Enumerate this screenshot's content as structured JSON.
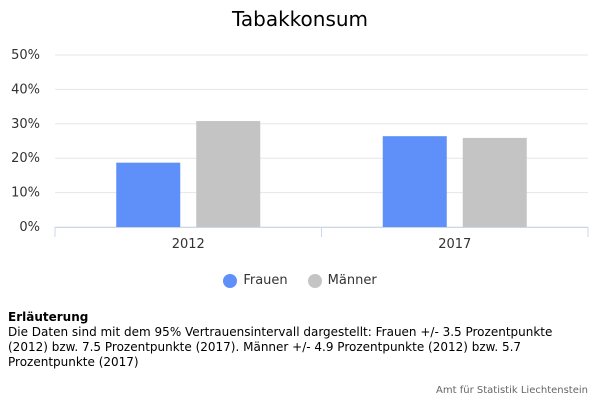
{
  "chart_data": {
    "type": "bar",
    "title": "Tabakkonsum",
    "categories": [
      "2012",
      "2017"
    ],
    "series": [
      {
        "name": "Frauen",
        "values": [
          18.7,
          26.4
        ],
        "color": "#5f8ff8"
      },
      {
        "name": "Männer",
        "values": [
          30.8,
          25.9
        ],
        "color": "#c4c4c4"
      }
    ],
    "ylim": [
      0,
      50
    ],
    "yticks": [
      "0%",
      "10%",
      "20%",
      "30%",
      "40%",
      "50%"
    ],
    "grid": true,
    "legend_position": "bottom"
  },
  "note": {
    "title": "Erläuterung",
    "text": "Die Daten sind mit dem 95% Vertrauensintervall dargestellt: Frauen +/- 3.5 Prozentpunkte (2012) bzw. 7.5 Prozentpunkte (2017). Männer +/- 4.9 Prozentpunkte (2012) bzw. 5.7 Prozentpunkte (2017)"
  },
  "credits": "Amt für Statistik Liechtenstein"
}
